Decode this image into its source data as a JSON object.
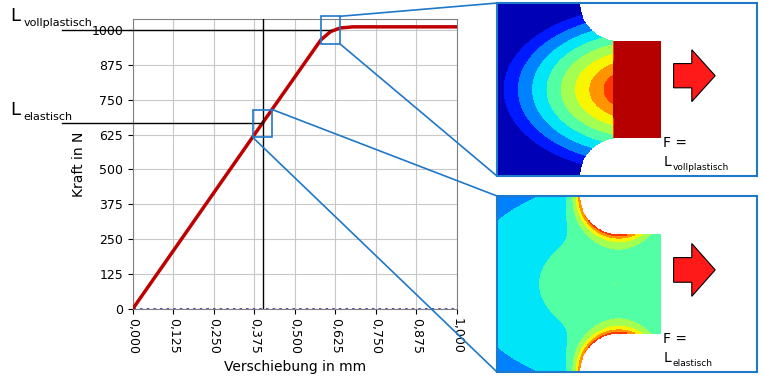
{
  "chart_data": {
    "type": "line",
    "x_label": "Verschiebung in mm",
    "y_label": "Kraft in N",
    "xlim": [
      0,
      1
    ],
    "ylim": [
      0,
      1040
    ],
    "xticks": [
      {
        "value": 0,
        "label": "0,000"
      },
      {
        "value": 0.125,
        "label": "0,125"
      },
      {
        "value": 0.25,
        "label": "0,250"
      },
      {
        "value": 0.375,
        "label": "0,375"
      },
      {
        "value": 0.5,
        "label": "0,500"
      },
      {
        "value": 0.625,
        "label": "0,625"
      },
      {
        "value": 0.75,
        "label": "0,750"
      },
      {
        "value": 0.875,
        "label": "0,875"
      },
      {
        "value": 1,
        "label": "1,000"
      }
    ],
    "yticks": [
      0,
      125,
      250,
      375,
      500,
      625,
      750,
      875,
      1000
    ],
    "grid": true,
    "x": [
      0,
      0.375,
      0.58,
      0.61,
      0.64,
      0.68,
      1.0
    ],
    "series": [
      {
        "color": "#1a1aa0",
        "line_style": "dotted",
        "values": [
          0,
          0,
          0,
          0,
          0,
          0,
          0
        ]
      },
      {
        "color": "#c00000",
        "line_style": "solid",
        "values": [
          0,
          625,
          965,
          995,
          1008,
          1012,
          1012
        ]
      }
    ],
    "annotations": [
      {
        "label": "L",
        "subscript": "vollplastisch",
        "x": 0.61,
        "y": 1000,
        "force_text": "F ="
      },
      {
        "label": "L",
        "subscript": "elastisch",
        "x": 0.4,
        "y": 665,
        "force_text": "F ="
      }
    ]
  }
}
